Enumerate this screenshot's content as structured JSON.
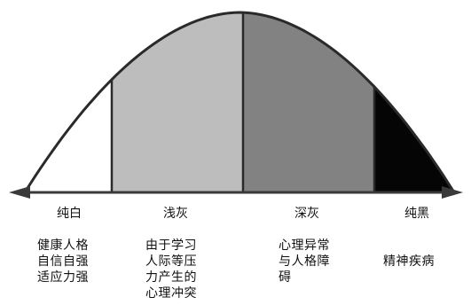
{
  "zones": [
    {
      "label": "纯白",
      "fill": "#ffffff",
      "description_lines": [
        "健康人格",
        "自信自强",
        "适应力强"
      ]
    },
    {
      "label": "浅灰",
      "fill": "#bdbdbd",
      "description_lines": [
        "由于学习",
        "人际等压",
        "力产生的",
        "心理冲突"
      ]
    },
    {
      "label": "深灰",
      "fill": "#828282",
      "description_lines": [
        "心理异常",
        "与人格障",
        "碍"
      ]
    },
    {
      "label": "纯黑",
      "fill": "#050505",
      "description_lines": [
        "精神疾病"
      ]
    }
  ],
  "colors": {
    "outline": "#2a2a2a",
    "axis": "#3a3a3a"
  }
}
